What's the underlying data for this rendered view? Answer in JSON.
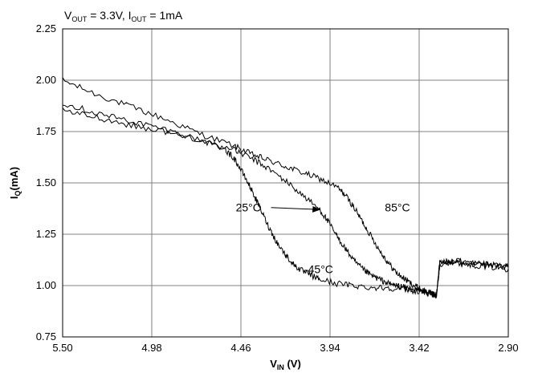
{
  "chart_data": {
    "type": "line",
    "title_parts": [
      "V",
      "OUT",
      " = 3.3V, I",
      "OUT",
      " = 1mA"
    ],
    "xlabel_main": "V",
    "xlabel_sub": "IN",
    "xlabel_unit": " (V)",
    "ylabel_main": "I",
    "ylabel_sub": "Q",
    "ylabel_unit": "(mA)",
    "xlim": [
      5.5,
      2.9
    ],
    "ylim": [
      0.75,
      2.25
    ],
    "x_reversed": true,
    "xticks": [
      "5.50",
      "4.98",
      "4.46",
      "3.94",
      "3.42",
      "2.90"
    ],
    "yticks": [
      "0.75",
      "1.00",
      "1.25",
      "1.50",
      "1.75",
      "2.00",
      "2.25"
    ],
    "grid": true,
    "series": [
      {
        "name": "85°C",
        "x": [
          5.5,
          5.3,
          5.1,
          4.9,
          4.7,
          4.5,
          4.4,
          4.3,
          4.2,
          4.1,
          4.0,
          3.9,
          3.85,
          3.8,
          3.75,
          3.7,
          3.65,
          3.6,
          3.55,
          3.5,
          3.45,
          3.4,
          3.35,
          3.32,
          3.3,
          3.25,
          3.2,
          3.1,
          3.0,
          2.9
        ],
        "y": [
          2.0,
          1.93,
          1.87,
          1.81,
          1.74,
          1.68,
          1.64,
          1.61,
          1.58,
          1.55,
          1.52,
          1.48,
          1.44,
          1.38,
          1.31,
          1.24,
          1.17,
          1.11,
          1.06,
          1.03,
          1.0,
          0.98,
          0.96,
          0.95,
          1.11,
          1.12,
          1.11,
          1.1,
          1.09,
          1.08
        ]
      },
      {
        "name": "25°C",
        "x": [
          5.5,
          5.3,
          5.1,
          4.9,
          4.7,
          4.5,
          4.4,
          4.3,
          4.2,
          4.1,
          4.0,
          3.95,
          3.9,
          3.85,
          3.8,
          3.75,
          3.7,
          3.65,
          3.6,
          3.55,
          3.5,
          3.45,
          3.4,
          3.35,
          3.32,
          3.3,
          3.2,
          3.1,
          3.0,
          2.9
        ],
        "y": [
          1.89,
          1.84,
          1.8,
          1.76,
          1.71,
          1.66,
          1.62,
          1.57,
          1.51,
          1.44,
          1.37,
          1.31,
          1.24,
          1.18,
          1.12,
          1.08,
          1.05,
          1.03,
          1.01,
          1.0,
          0.99,
          0.98,
          0.97,
          0.96,
          0.95,
          1.11,
          1.12,
          1.11,
          1.1,
          1.09
        ]
      },
      {
        "name": "-45°C",
        "x": [
          5.5,
          5.3,
          5.1,
          4.9,
          4.7,
          4.55,
          4.5,
          4.45,
          4.4,
          4.35,
          4.3,
          4.25,
          4.2,
          4.15,
          4.1,
          4.05,
          4.0,
          3.9,
          3.8,
          3.7,
          3.6,
          3.5,
          3.4,
          3.35,
          3.32,
          3.3,
          3.2,
          3.1,
          3.0,
          2.9
        ],
        "y": [
          1.85,
          1.82,
          1.78,
          1.75,
          1.71,
          1.66,
          1.62,
          1.55,
          1.47,
          1.38,
          1.29,
          1.21,
          1.15,
          1.1,
          1.07,
          1.05,
          1.03,
          1.01,
          1.0,
          0.99,
          0.99,
          0.98,
          0.97,
          0.96,
          0.95,
          1.1,
          1.12,
          1.11,
          1.1,
          1.09
        ]
      }
    ],
    "annotations": [
      {
        "text": "85°C",
        "x": 3.62,
        "y": 1.38
      },
      {
        "text": "25°C",
        "x": 4.49,
        "y": 1.38,
        "arrow_to": [
          4.0,
          1.37
        ]
      },
      {
        "text": "-45°C",
        "x": 4.09,
        "y": 1.08
      }
    ]
  }
}
